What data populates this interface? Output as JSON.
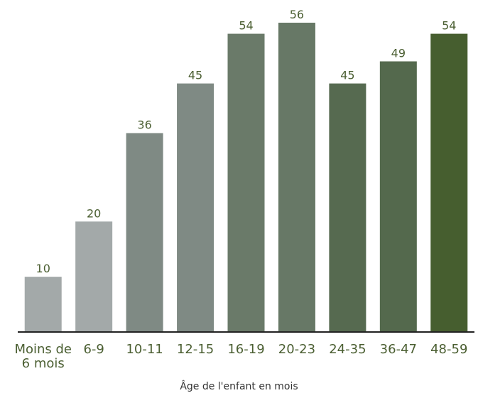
{
  "chart_data": {
    "type": "bar",
    "x_label": "Âge de l'enfant en mois",
    "categories": [
      "Moins de 6 mois",
      "6-9",
      "10-11",
      "12-15",
      "16-19",
      "20-23",
      "24-35",
      "36-47",
      "48-59"
    ],
    "values": [
      10,
      20,
      36,
      45,
      54,
      56,
      45,
      49,
      54
    ],
    "colors": [
      "#a3a9a9",
      "#a3a9a9",
      "#7f8a84",
      "#7f8a84",
      "#6a7a69",
      "#677866",
      "#566a50",
      "#54694d",
      "#465e2f"
    ]
  }
}
